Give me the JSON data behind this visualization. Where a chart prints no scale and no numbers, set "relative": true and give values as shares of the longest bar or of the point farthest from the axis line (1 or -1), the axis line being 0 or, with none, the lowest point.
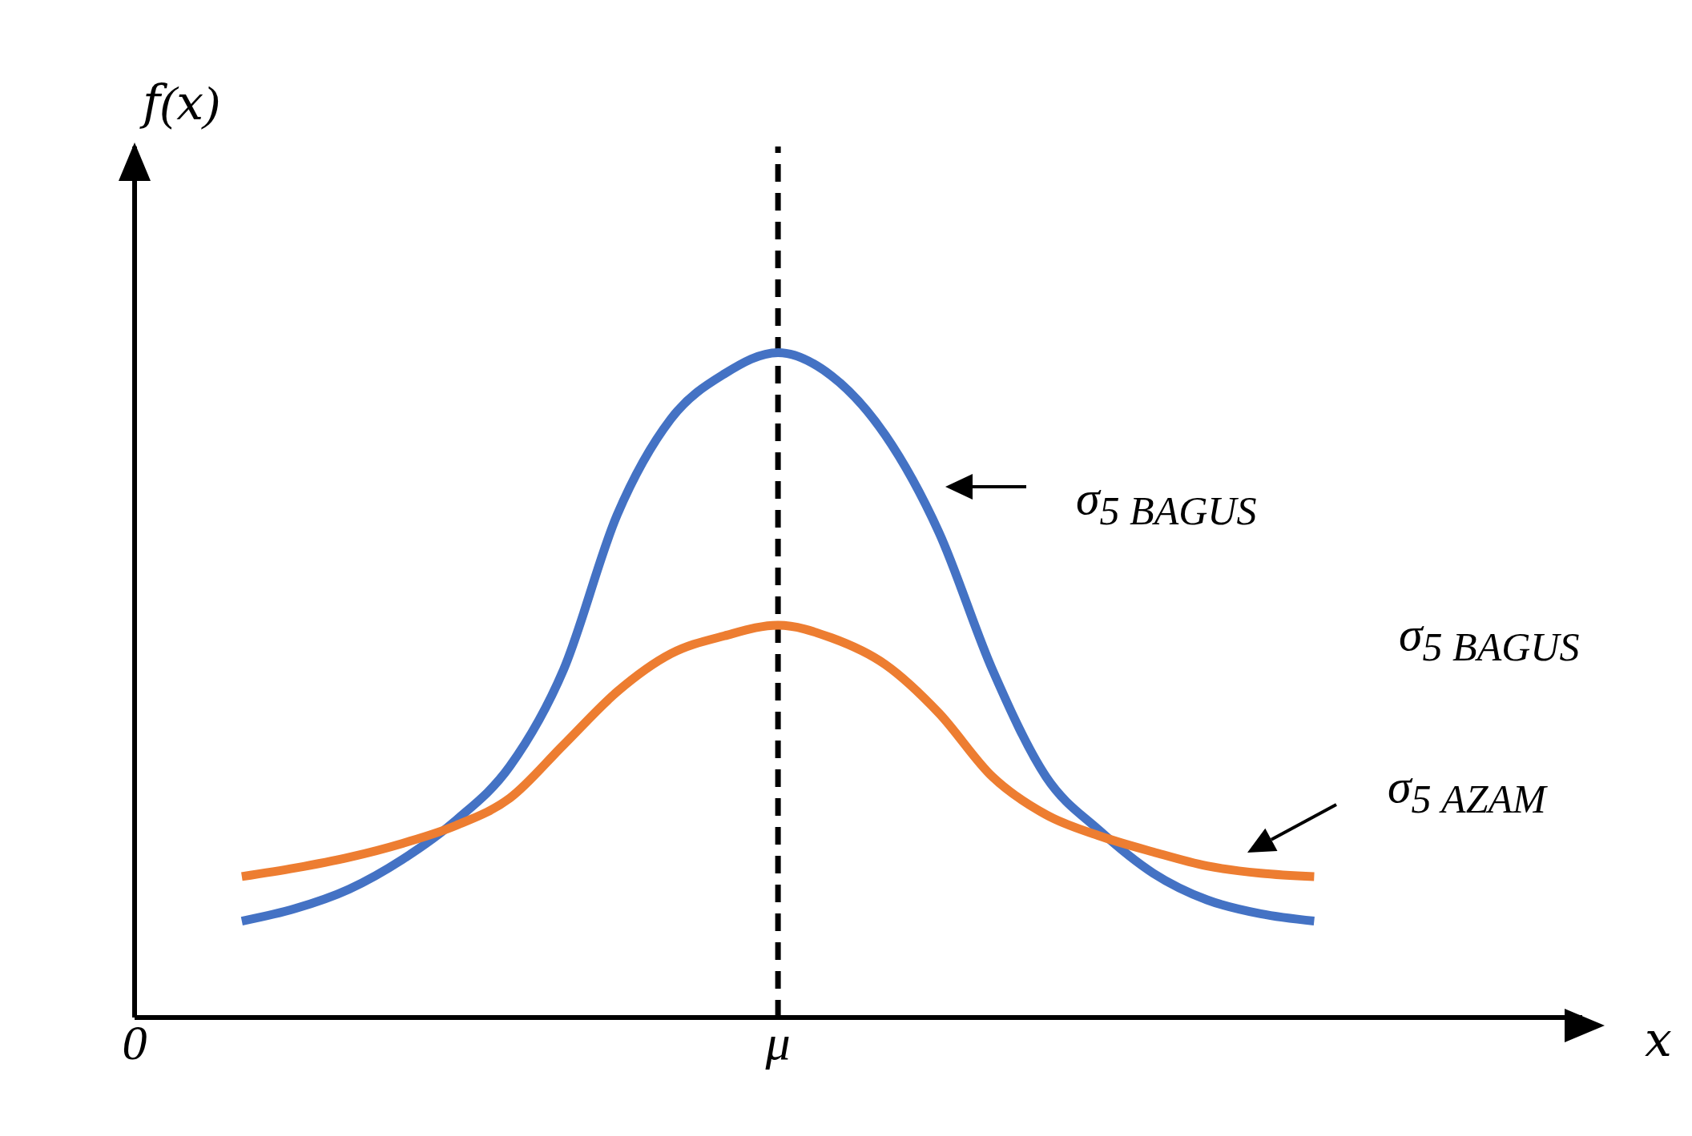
{
  "chart_data": {
    "type": "line",
    "relative": true,
    "ylabel": "𝑓(𝑥)",
    "xlabel": "𝑥",
    "marker": "none",
    "categories": [
      "0",
      null,
      null,
      null,
      null,
      null,
      null,
      null,
      null,
      null,
      null,
      null,
      "μ",
      null,
      null,
      null,
      null,
      null,
      null,
      null,
      null,
      null,
      null,
      null,
      null,
      null,
      null,
      null
    ],
    "series": [
      {
        "name": "σ$_{5 BAGUS}$",
        "color": "#4472c4",
        "values": [
          null,
          null,
          0.145,
          0.164,
          0.193,
          0.238,
          0.297,
          0.378,
          0.523,
          0.756,
          0.9,
          0.968,
          1,
          0.965,
          0.876,
          0.73,
          0.523,
          0.362,
          0.281,
          0.217,
          0.177,
          0.156,
          0.145,
          null,
          null,
          null,
          null,
          null
        ]
      },
      {
        "name": "σ$_{5 AZAM}$",
        "color": "#ed7d31",
        "values": [
          null,
          null,
          0.212,
          0.225,
          0.241,
          0.262,
          0.289,
          0.33,
          0.41,
          0.49,
          0.547,
          0.574,
          0.59,
          0.571,
          0.531,
          0.458,
          0.362,
          0.305,
          0.273,
          0.249,
          0.228,
          0.217,
          0.212,
          null,
          null,
          null,
          null,
          null
        ]
      }
    ],
    "ref_lines": [
      {
        "axis": "x",
        "value": "μ",
        "line_style": "dashed",
        "color": "#000000"
      }
    ],
    "annotations": [
      "σ$_{5 BAGUS}$"
    ]
  }
}
